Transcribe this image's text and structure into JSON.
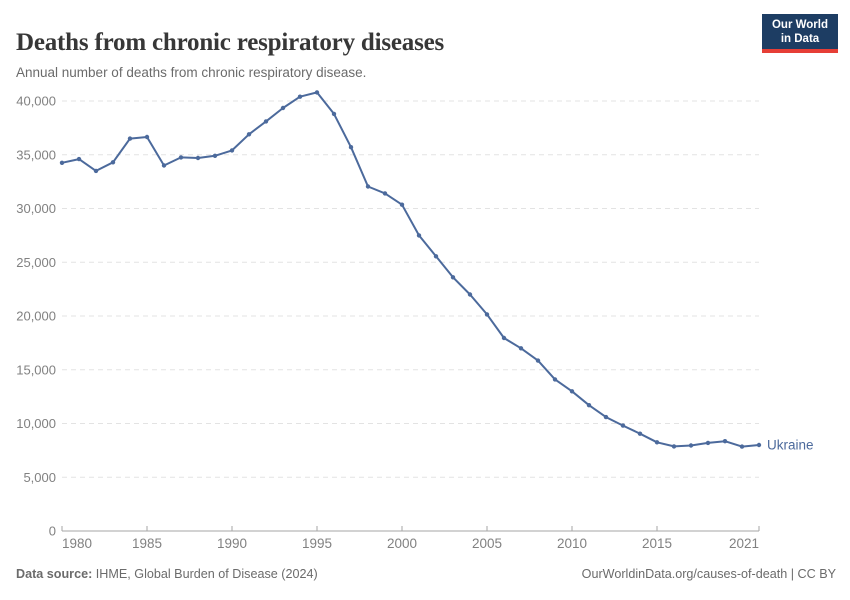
{
  "header": {
    "title": "Deaths from chronic respiratory diseases",
    "subtitle": "Annual number of deaths from chronic respiratory disease.",
    "logo": {
      "line1": "Our World",
      "line2": "in Data",
      "bg_color": "#1d3d63",
      "accent_color": "#e63e36"
    }
  },
  "chart_data": {
    "type": "line",
    "title": "Deaths from chronic respiratory diseases",
    "xlabel": "",
    "ylabel": "",
    "grid": "horizontal-dashed",
    "legend_position": "end-of-line-label",
    "ylim": [
      0,
      40000
    ],
    "xlim": [
      1980,
      2021
    ],
    "x": [
      1980,
      1981,
      1982,
      1983,
      1984,
      1985,
      1986,
      1987,
      1988,
      1989,
      1990,
      1991,
      1992,
      1993,
      1994,
      1995,
      1996,
      1997,
      1998,
      1999,
      2000,
      2001,
      2002,
      2003,
      2004,
      2005,
      2006,
      2007,
      2008,
      2009,
      2010,
      2011,
      2012,
      2013,
      2014,
      2015,
      2016,
      2017,
      2018,
      2019,
      2020,
      2021
    ],
    "series": [
      {
        "name": "Ukraine",
        "color": "#4c6a9c",
        "values": [
          34250,
          34600,
          33500,
          34300,
          36500,
          36650,
          34000,
          34750,
          34700,
          34900,
          35400,
          36900,
          38100,
          39350,
          40400,
          40800,
          38800,
          35700,
          32050,
          31400,
          30350,
          27500,
          25550,
          23600,
          22000,
          20150,
          17950,
          17000,
          15850,
          14100,
          13000,
          11700,
          10600,
          9800,
          9050,
          8250,
          7870,
          7950,
          8200,
          8350,
          7850,
          8000
        ]
      }
    ],
    "yticks": [
      {
        "value": 0,
        "label": "0"
      },
      {
        "value": 5000,
        "label": "5,000"
      },
      {
        "value": 10000,
        "label": "10,000"
      },
      {
        "value": 15000,
        "label": "15,000"
      },
      {
        "value": 20000,
        "label": "20,000"
      },
      {
        "value": 25000,
        "label": "25,000"
      },
      {
        "value": 30000,
        "label": "30,000"
      },
      {
        "value": 35000,
        "label": "35,000"
      },
      {
        "value": 40000,
        "label": "40,000"
      }
    ],
    "xticks": [
      {
        "value": 1980,
        "label": "1980",
        "align": "start"
      },
      {
        "value": 1985,
        "label": "1985",
        "align": "middle"
      },
      {
        "value": 1990,
        "label": "1990",
        "align": "middle"
      },
      {
        "value": 1995,
        "label": "1995",
        "align": "middle"
      },
      {
        "value": 2000,
        "label": "2000",
        "align": "middle"
      },
      {
        "value": 2005,
        "label": "2005",
        "align": "middle"
      },
      {
        "value": 2010,
        "label": "2010",
        "align": "middle"
      },
      {
        "value": 2015,
        "label": "2015",
        "align": "middle"
      },
      {
        "value": 2021,
        "label": "2021",
        "align": "end"
      }
    ],
    "colors": {
      "gridline": "#e3e3e3",
      "axis_line": "#a6a6a6",
      "tick_label": "#818181"
    }
  },
  "footer": {
    "source_label": "Data source:",
    "source_text": " IHME, Global Burden of Disease (2024)",
    "link_text": "OurWorldinData.org/causes-of-death | CC BY"
  }
}
